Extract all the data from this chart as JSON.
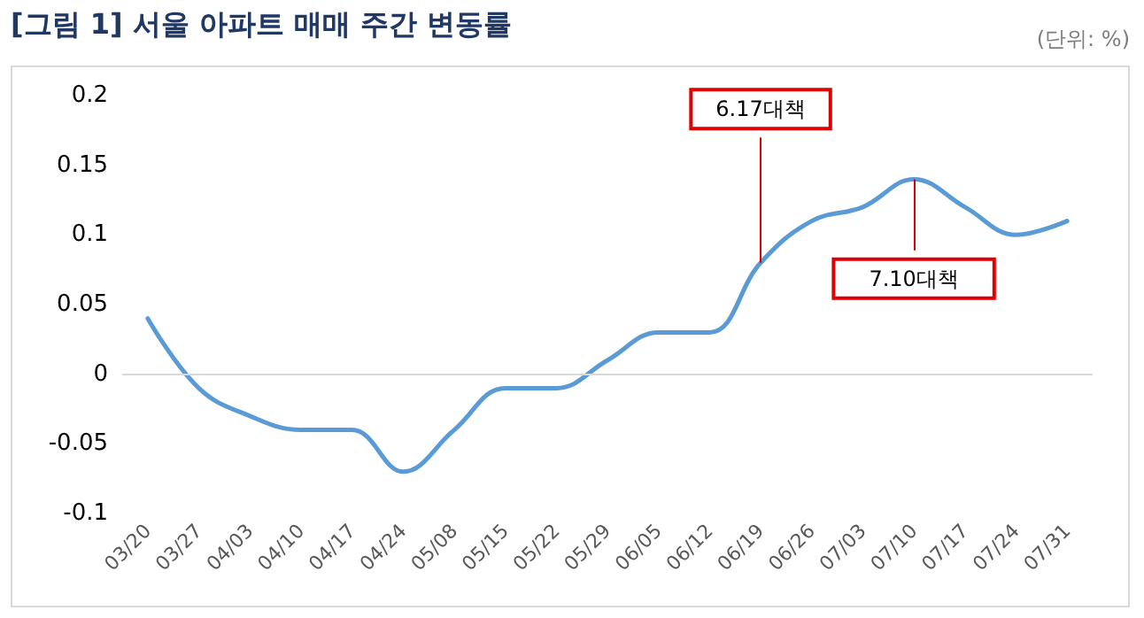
{
  "chart_data": {
    "type": "line",
    "title": "[그림 1] 서울 아파트 매매 주간 변동률",
    "categories": [
      "03/20",
      "03/27",
      "04/03",
      "04/10",
      "04/17",
      "04/24",
      "05/08",
      "05/15",
      "05/22",
      "05/29",
      "06/05",
      "06/12",
      "06/19",
      "06/26",
      "07/03",
      "07/10",
      "07/17",
      "07/24",
      "07/31"
    ],
    "series": [
      {
        "color": "#5b9bd5",
        "values": [
          0.04,
          -0.01,
          -0.03,
          -0.04,
          -0.04,
          -0.07,
          -0.04,
          -0.01,
          -0.01,
          0.01,
          0.03,
          0.03,
          0.08,
          0.11,
          0.12,
          0.14,
          0.12,
          0.1,
          0.11
        ]
      }
    ],
    "ylim": [
      -0.1,
      0.2
    ],
    "yticks": [
      -0.1,
      -0.05,
      0,
      0.05,
      0.1,
      0.15,
      0.2
    ],
    "grid": false,
    "marker": "none",
    "line_style": "solid",
    "ref_lines": [
      {
        "axis": "y",
        "value": 0,
        "color": "#d9d9d9"
      }
    ],
    "annotations": [
      "(단위: %)",
      {
        "text": "6.17대책",
        "x": "06/19",
        "y": 0.08
      },
      {
        "text": "7.10대책",
        "x": "07/10",
        "y": 0.14
      }
    ]
  }
}
